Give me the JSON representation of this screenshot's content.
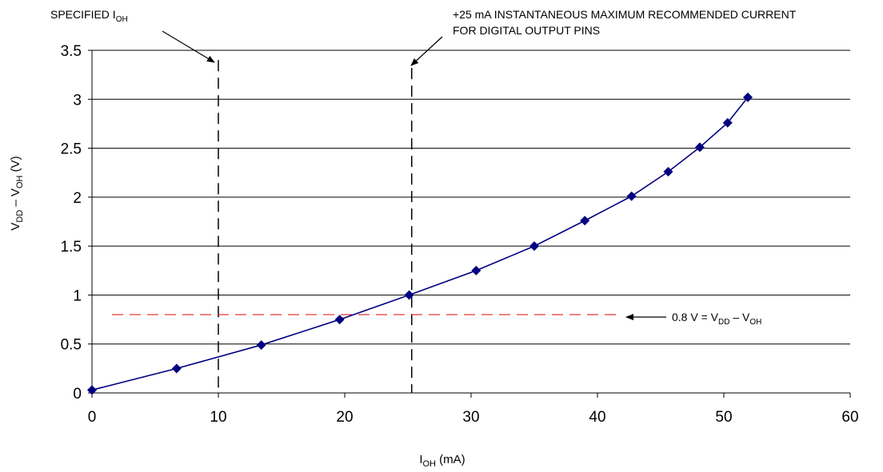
{
  "chart_data": {
    "type": "line",
    "xlim": [
      0,
      60
    ],
    "ylim": [
      0,
      3.5
    ],
    "x_ticks": [
      "0",
      "10",
      "20",
      "30",
      "40",
      "50",
      "60"
    ],
    "y_ticks": [
      "0",
      "0.5",
      "1",
      "1.5",
      "2",
      "2.5",
      "3",
      "3.5"
    ],
    "grid": "horizontal",
    "xlabel": {
      "main": "I",
      "sub": "OH",
      "rest": " (mA)"
    },
    "ylabel": {
      "p1": "V",
      "s1": "DD",
      "p2": " – V",
      "s2": "OH",
      "p3": " (V)"
    },
    "series": [
      {
        "color": "#000080",
        "x": [
          0,
          6.7,
          13.4,
          19.6,
          25.1,
          30.4,
          35,
          39,
          42.7,
          45.6,
          48.1,
          50.3,
          51.9
        ],
        "y": [
          0.03,
          0.25,
          0.49,
          0.75,
          1.0,
          1.25,
          1.5,
          1.76,
          2.01,
          2.26,
          2.51,
          2.76,
          3.02
        ]
      }
    ],
    "reference_lines": [
      {
        "orientation": "vertical",
        "x": 10,
        "y_top": 3.4,
        "color": "#000000"
      },
      {
        "orientation": "vertical",
        "x": 25.3,
        "y_top": 3.32,
        "color": "#000000"
      },
      {
        "orientation": "horizontal",
        "y": 0.8,
        "x_end": 41.5,
        "color": "#e02020"
      }
    ],
    "annotations": {
      "specified": {
        "p1": "SPECIFIED I",
        "s1": "OH"
      },
      "max_current": {
        "line1": "+25 mA INSTANTANEOUS MAXIMUM RECOMMENDED CURRENT",
        "line2": "FOR DIGITAL OUTPUT PINS"
      },
      "threshold": {
        "p1": "0.8 V = V",
        "s1": "DD",
        "p2": " – V",
        "s2": "OH"
      }
    }
  }
}
